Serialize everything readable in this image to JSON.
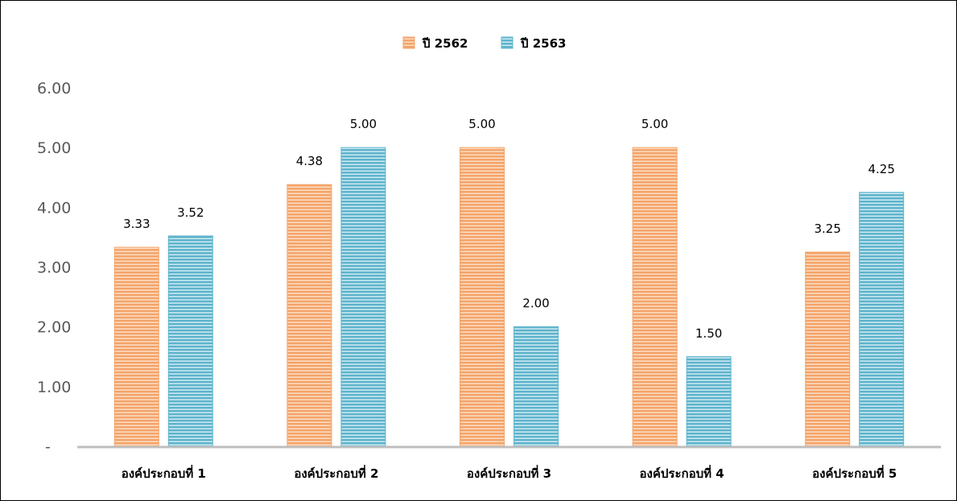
{
  "chart_data": {
    "type": "bar",
    "categories": [
      "องค์ประกอบที่ 1",
      "องค์ประกอบที่ 2",
      "องค์ประกอบที่ 3",
      "องค์ประกอบที่ 4",
      "องค์ประกอบที่ 5"
    ],
    "series": [
      {
        "name": "ปี 2562",
        "values": [
          3.33,
          4.38,
          5.0,
          5.0,
          3.25
        ],
        "value_labels": [
          "3.33",
          "4.38",
          "5.00",
          "5.00",
          "3.25"
        ],
        "color": "#F4A46A",
        "stripe_color": "#FCE0C8"
      },
      {
        "name": "ปี 2563",
        "values": [
          3.52,
          5.0,
          2.0,
          1.5,
          4.25
        ],
        "value_labels": [
          "3.52",
          "5.00",
          "2.00",
          "1.50",
          "4.25"
        ],
        "color": "#5FB4CC",
        "stripe_color": "#D3EDF4"
      }
    ],
    "y_ticks": [
      0,
      1,
      2,
      3,
      4,
      5,
      6
    ],
    "y_tick_labels": [
      "-",
      "1.00",
      "2.00",
      "3.00",
      "4.00",
      "5.00",
      "6.00"
    ],
    "ylim": [
      0,
      6
    ],
    "grid": false,
    "legend_position": "top-center",
    "axis_color": "#BFBFBF"
  }
}
